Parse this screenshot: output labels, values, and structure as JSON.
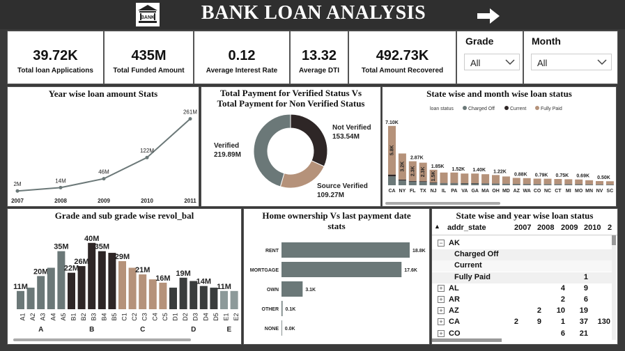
{
  "header": {
    "title": "BANK LOAN ANALYSIS",
    "logo_text": "BANK",
    "arrow_icon": "arrow-right-icon"
  },
  "kpis": [
    {
      "value": "39.72K",
      "label": "Total loan Applications"
    },
    {
      "value": "435M",
      "label": "Total Funded Amount"
    },
    {
      "value": "0.12",
      "label": "Average Interest Rate"
    },
    {
      "value": "13.32",
      "label": "Average DTI"
    },
    {
      "value": "492.73K",
      "label": "Total Amount Recovered"
    }
  ],
  "slicers": {
    "grade": {
      "title": "Grade",
      "value": "All"
    },
    "month": {
      "title": "Month",
      "value": "All"
    }
  },
  "year_chart": {
    "title": "Year wise loan amount Stats",
    "chart_data": {
      "type": "line",
      "x": [
        "2007",
        "2008",
        "2009",
        "2010",
        "2011"
      ],
      "values": [
        2,
        14,
        46,
        122,
        261
      ],
      "labels": [
        "2M",
        "14M",
        "46M",
        "122M",
        "261M"
      ]
    }
  },
  "donut_chart": {
    "title_line1": "Total Payment for Verified Status Vs",
    "title_line2": "Total Payment for Non Verified Status",
    "chart_data": {
      "type": "pie",
      "slices": [
        {
          "name": "Not Verified",
          "label": "153.54M",
          "value": 153.54,
          "color": "#2e2626"
        },
        {
          "name": "Source Verified",
          "label": "109.27M",
          "value": 109.27,
          "color": "#b5927a"
        },
        {
          "name": "Verified",
          "label": "219.89M",
          "value": 219.89,
          "color": "#6b7878"
        }
      ]
    }
  },
  "state_month_chart": {
    "title": "State wise and month wise loan status",
    "legend_title": "loan status",
    "legend": [
      {
        "name": "Charged Off",
        "color": "#6b7878"
      },
      {
        "name": "Current",
        "color": "#2e2626"
      },
      {
        "name": "Fully Paid",
        "color": "#b5927a"
      }
    ],
    "chart_data": {
      "type": "bar",
      "categories": [
        "CA",
        "NY",
        "FL",
        "TX",
        "NJ",
        "IL",
        "PA",
        "VA",
        "GA",
        "MA",
        "OH",
        "MD",
        "AZ",
        "WA",
        "CO",
        "NC",
        "CT",
        "MI",
        "MO",
        "MN",
        "NV",
        "SC"
      ],
      "totals": [
        7.1,
        3.8,
        2.87,
        2.7,
        1.85,
        1.52,
        1.52,
        1.4,
        1.4,
        1.32,
        1.22,
        1.05,
        0.88,
        0.85,
        0.79,
        0.78,
        0.75,
        0.72,
        0.69,
        0.6,
        0.5,
        0.48
      ],
      "total_labels": [
        "7.10K",
        "",
        "2.87K",
        "",
        "1.85K",
        "",
        "1.52K",
        "",
        "1.40K",
        "",
        "1.22K",
        "",
        "0.88K",
        "",
        "0.79K",
        "",
        "0.75K",
        "",
        "0.69K",
        "",
        "0.50K",
        ""
      ],
      "inner_labels": [
        "5.8K",
        "3.2K",
        "2.3K",
        "2.3K",
        "1.5K",
        "",
        "",
        "",
        "",
        "",
        "",
        "",
        "",
        "",
        "",
        "",
        "",
        "",
        "",
        "",
        "",
        ""
      ]
    }
  },
  "grade_chart": {
    "title": "Grade and sub grade wise revol_bal",
    "chart_data": {
      "type": "bar",
      "categories": [
        "A1",
        "A2",
        "A3",
        "A4",
        "A5",
        "B1",
        "B2",
        "B3",
        "B4",
        "B5",
        "C1",
        "C2",
        "C3",
        "C4",
        "C5",
        "D1",
        "D2",
        "D3",
        "D4",
        "D5",
        "E1",
        "E2"
      ],
      "values": [
        11,
        13,
        20,
        25,
        35,
        22,
        26,
        40,
        35,
        34,
        29,
        25,
        21,
        18,
        16,
        13,
        19,
        17,
        14,
        13,
        11,
        11
      ],
      "labels": [
        "11M",
        "",
        "20M",
        "",
        "35M",
        "22M",
        "26M",
        "40M",
        "35M",
        "",
        "29M",
        "",
        "21M",
        "",
        "16M",
        "",
        "19M",
        "",
        "14M",
        "",
        "11M",
        ""
      ],
      "groups": [
        {
          "name": "A",
          "start": 0,
          "end": 4
        },
        {
          "name": "B",
          "start": 5,
          "end": 9
        },
        {
          "name": "C",
          "start": 10,
          "end": 14
        },
        {
          "name": "D",
          "start": 15,
          "end": 19
        },
        {
          "name": "E",
          "start": 20,
          "end": 21
        }
      ]
    }
  },
  "home_chart": {
    "title_line1": "Home ownership Vs last payment date",
    "title_line2": "stats",
    "chart_data": {
      "type": "bar",
      "categories": [
        "RENT",
        "MORTGAGE",
        "OWN",
        "OTHER",
        "NONE"
      ],
      "values": [
        18.8,
        17.6,
        3.1,
        0.1,
        0.0
      ],
      "labels": [
        "18.8K",
        "17.6K",
        "3.1K",
        "0.1K",
        "0.0K"
      ]
    }
  },
  "state_year_table": {
    "title": "State wise and year wise loan status",
    "col_header": "addr_state",
    "years": [
      "2007",
      "2008",
      "2009",
      "2010",
      "2"
    ],
    "rows": [
      {
        "state": "AK",
        "expanded": true,
        "vals": [
          "",
          "",
          "",
          "",
          ""
        ]
      },
      {
        "state": "Charged Off",
        "sub": true,
        "vals": [
          "",
          "",
          "",
          "",
          ""
        ]
      },
      {
        "state": "Current",
        "sub": true,
        "vals": [
          "",
          "",
          "",
          "",
          ""
        ]
      },
      {
        "state": "Fully Paid",
        "sub": true,
        "vals": [
          "",
          "",
          "",
          "1",
          ""
        ]
      },
      {
        "state": "AL",
        "vals": [
          "",
          "",
          "4",
          "9",
          ""
        ]
      },
      {
        "state": "AR",
        "vals": [
          "",
          "",
          "2",
          "6",
          ""
        ]
      },
      {
        "state": "AZ",
        "vals": [
          "",
          "2",
          "10",
          "19",
          ""
        ]
      },
      {
        "state": "CA",
        "vals": [
          "2",
          "9",
          "1",
          "37",
          "130"
        ]
      },
      {
        "state": "CO",
        "vals": [
          "",
          "",
          "6",
          "21",
          ""
        ]
      }
    ]
  }
}
